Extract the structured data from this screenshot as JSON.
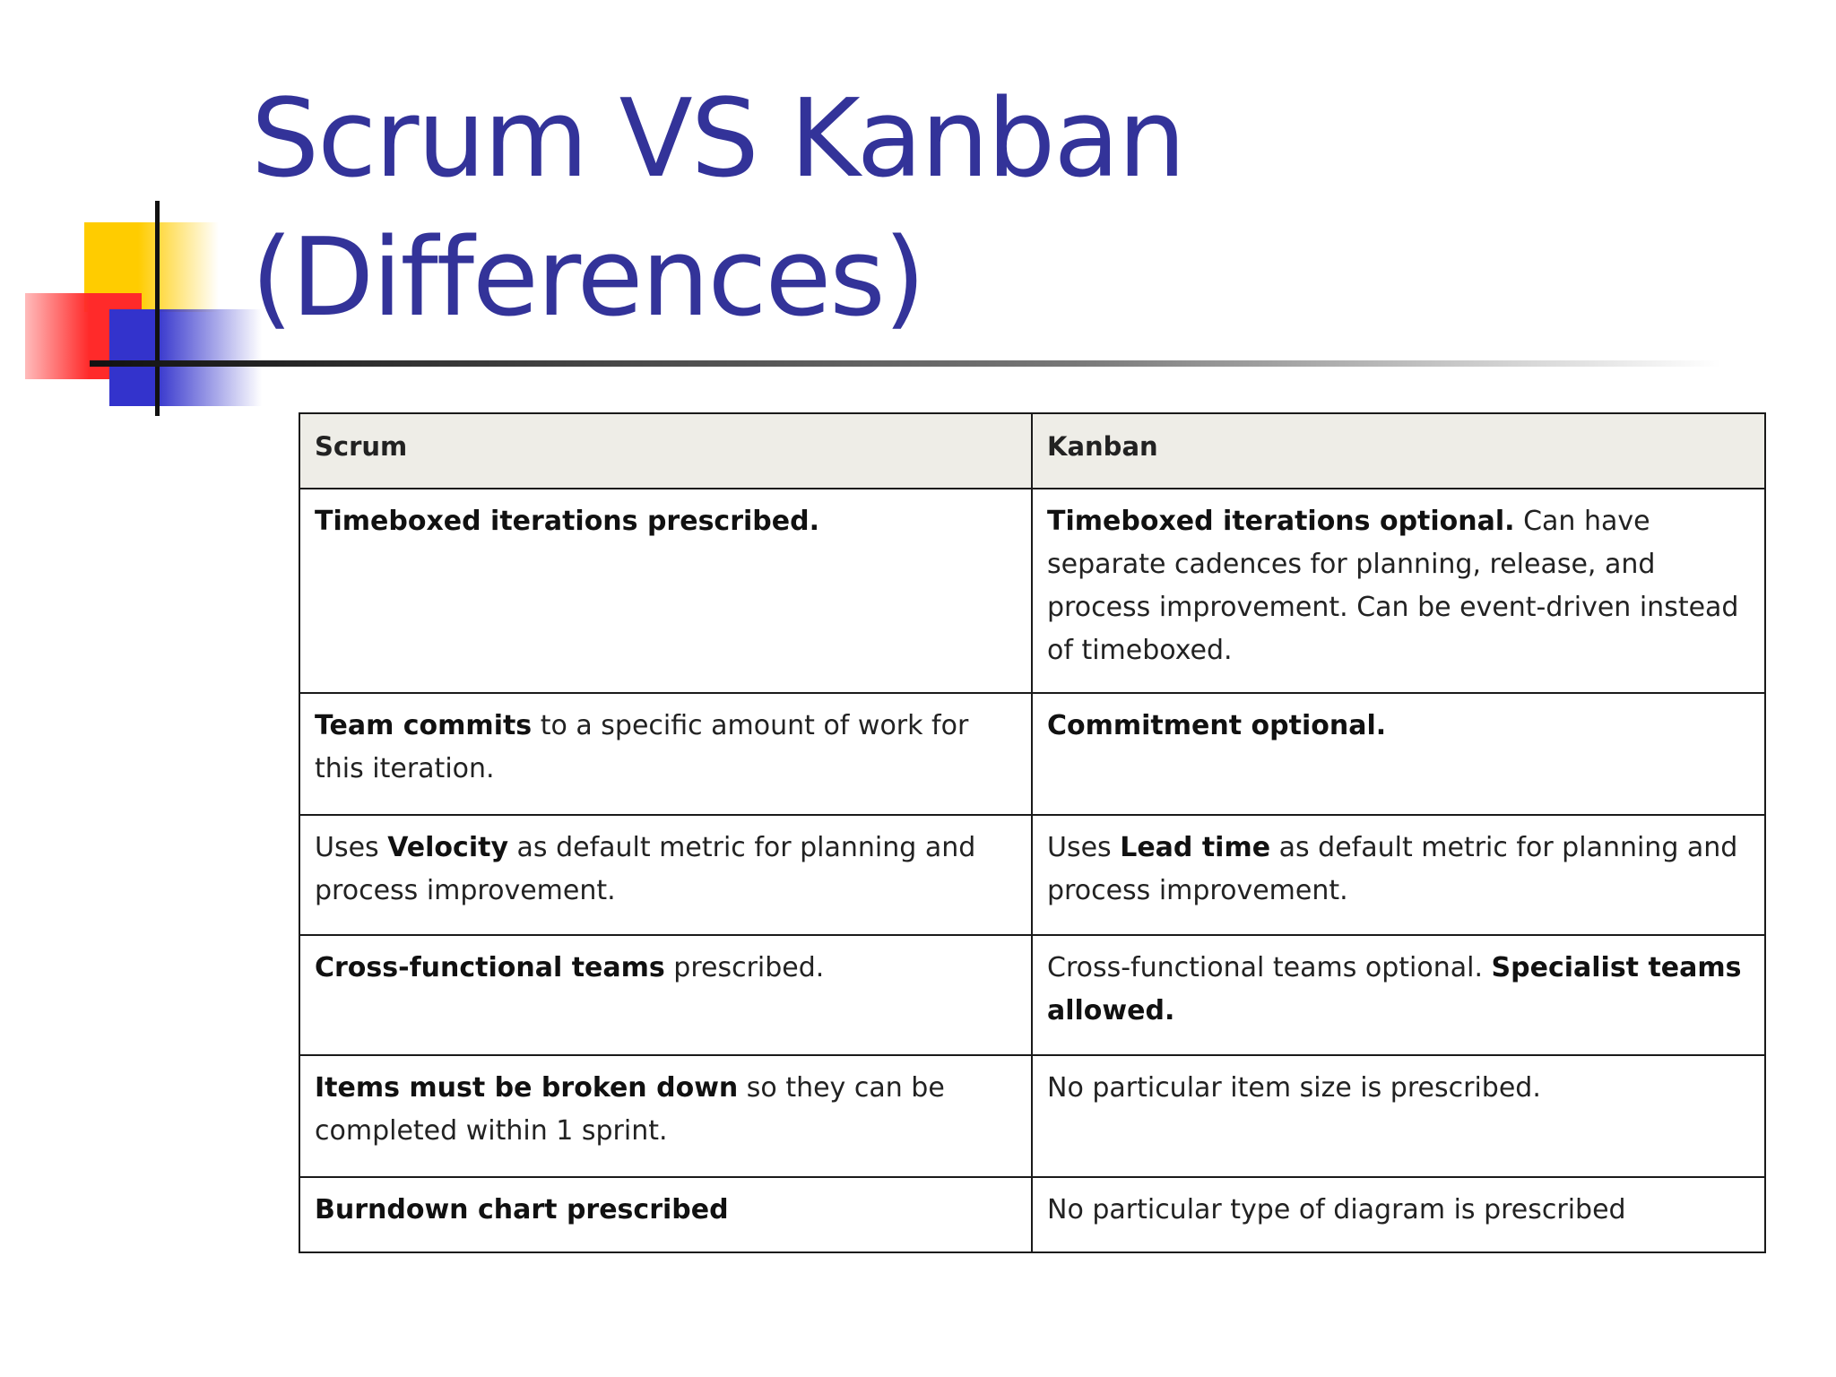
{
  "slide": {
    "title_line1": "Scrum VS Kanban",
    "title_line2": "(Differences)"
  },
  "table": {
    "headers": [
      "Scrum",
      "Kanban"
    ],
    "rows": [
      {
        "scrum": {
          "bold": "Timeboxed iterations prescribed.",
          "rest": ""
        },
        "kanban": {
          "bold": "Timeboxed iterations optional.",
          "rest": " Can have separate cadences for planning, release, and process improvement.  Can be event-driven instead of timeboxed."
        }
      },
      {
        "scrum": {
          "bold": "Team commits",
          "rest": " to a specific amount of work for this iteration."
        },
        "kanban": {
          "bold": "Commitment optional.",
          "rest": ""
        }
      },
      {
        "scrum": {
          "pre": "Uses ",
          "bold": "Velocity",
          "rest": " as default metric for planning and process improvement."
        },
        "kanban": {
          "pre": "Uses ",
          "bold": "Lead time",
          "rest": " as default metric for planning and process improvement."
        }
      },
      {
        "scrum": {
          "bold": "Cross-functional teams",
          "rest": " prescribed."
        },
        "kanban": {
          "pre": "Cross-functional teams optional. ",
          "bold": "Specialist teams allowed."
        }
      },
      {
        "scrum": {
          "bold": "Items must be broken down",
          "rest": " so they can be completed within 1 sprint."
        },
        "kanban": {
          "pre": "No particular item size is prescribed."
        }
      },
      {
        "scrum": {
          "bold": "Burndown chart prescribed"
        },
        "kanban": {
          "pre": "No particular type of diagram is prescribed"
        }
      }
    ]
  },
  "colors": {
    "title": "#333399",
    "header_bg": "#eeede7",
    "border": "#1a1a1a"
  }
}
